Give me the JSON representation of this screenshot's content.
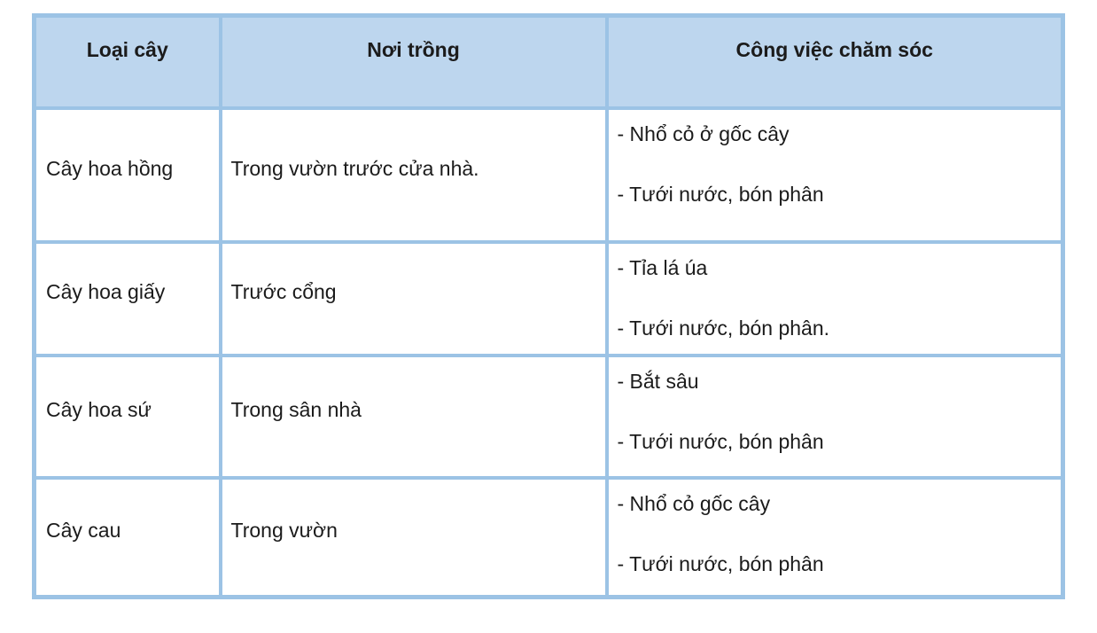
{
  "table": {
    "headers": [
      "Loại cây",
      "Nơi trồng",
      "Công việc chăm sóc"
    ],
    "rows": [
      {
        "plant": "Cây hoa hồng",
        "location": "Trong vườn trước cửa nhà.",
        "tasks": [
          "- Nhổ cỏ ở gốc cây",
          "- Tưới nước, bón phân"
        ]
      },
      {
        "plant": "Cây hoa giấy",
        "location": "Trước cổng",
        "tasks": [
          "- Tỉa lá úa",
          "- Tưới nước, bón phân."
        ]
      },
      {
        "plant": "Cây hoa sứ",
        "location": "Trong sân nhà",
        "tasks": [
          "- Bắt sâu",
          "- Tưới nước, bón phân"
        ]
      },
      {
        "plant": "Cây cau",
        "location": "Trong vườn",
        "tasks": [
          "- Nhổ cỏ gốc cây",
          "- Tưới nước, bón phân"
        ]
      }
    ],
    "style": {
      "header_fill": "#bdd6ee",
      "border_color": "#9cc3e5",
      "text_color": "#1b1b1b",
      "page_background": "#ffffff"
    }
  }
}
